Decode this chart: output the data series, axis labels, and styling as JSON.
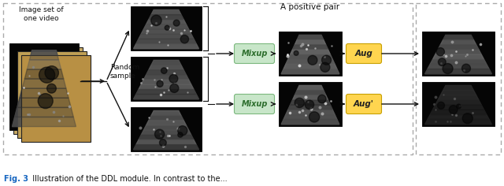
{
  "bg_color": "#ffffff",
  "dashed_border_color": "#aaaaaa",
  "caption_color": "#1565C0",
  "title_text": "A positive pair",
  "random_sample_text": "Random\nsample",
  "image_set_text": "Image set of\none video",
  "mixup_color": "#c8e6c9",
  "mixup_border": "#7cb87e",
  "aug_color": "#FFD54F",
  "aug_border": "#c8a000",
  "arrow_color": "#111111",
  "bracket_color": "#111111",
  "stack_colors": [
    "#c8aa66",
    "#c0a055",
    "#b89044"
  ],
  "fig3_label": "Fig. 3",
  "fig3_text": "  Illustration of the DDL module. In contrast to the..."
}
